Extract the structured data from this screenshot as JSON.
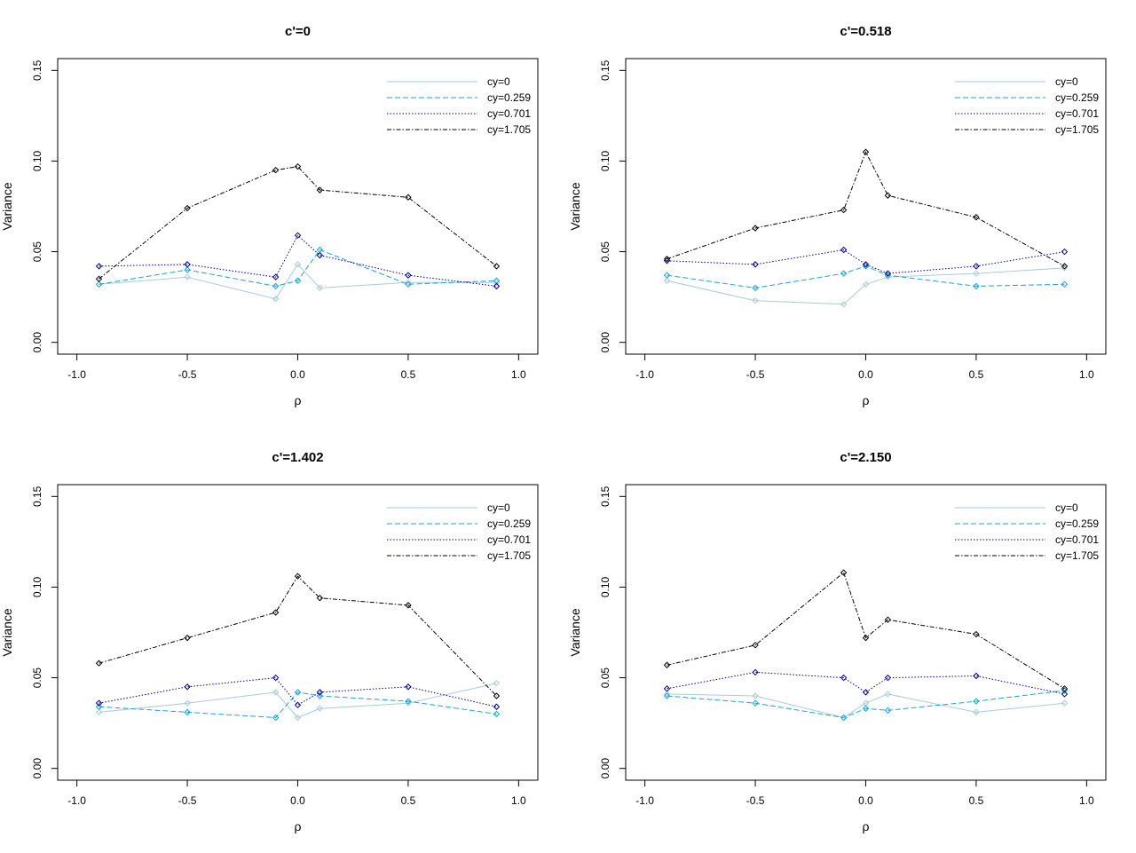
{
  "chart_data": [
    {
      "type": "line",
      "title": "c'=0",
      "xlabel": "ρ",
      "ylabel": "Variance",
      "xlim": [
        -1.0,
        1.0
      ],
      "ylim": [
        0.0,
        0.15
      ],
      "x_ticks": [
        "-1.0",
        "-0.5",
        "0.0",
        "0.5",
        "1.0"
      ],
      "y_ticks": [
        "0.00",
        "0.05",
        "0.10",
        "0.15"
      ],
      "legend_position": "top-right",
      "x": [
        -0.9,
        -0.5,
        -0.1,
        0.0,
        0.1,
        0.5,
        0.9
      ],
      "series": [
        {
          "name": "cy=0",
          "values": [
            0.032,
            0.036,
            0.024,
            0.043,
            0.03,
            0.033,
            0.033
          ]
        },
        {
          "name": "cy=0.259",
          "values": [
            0.032,
            0.04,
            0.031,
            0.034,
            0.051,
            0.032,
            0.034
          ]
        },
        {
          "name": "cy=0.701",
          "values": [
            0.042,
            0.043,
            0.036,
            0.059,
            0.048,
            0.037,
            0.031
          ]
        },
        {
          "name": "cy=1.705",
          "values": [
            0.035,
            0.074,
            0.095,
            0.097,
            0.084,
            0.08,
            0.042
          ]
        }
      ]
    },
    {
      "type": "line",
      "title": "c'=0.518",
      "xlabel": "ρ",
      "ylabel": "Variance",
      "xlim": [
        -1.0,
        1.0
      ],
      "ylim": [
        0.0,
        0.15
      ],
      "x_ticks": [
        "-1.0",
        "-0.5",
        "0.0",
        "0.5",
        "1.0"
      ],
      "y_ticks": [
        "0.00",
        "0.05",
        "0.10",
        "0.15"
      ],
      "legend_position": "top-right",
      "x": [
        -0.9,
        -0.5,
        -0.1,
        0.0,
        0.1,
        0.5,
        0.9
      ],
      "series": [
        {
          "name": "cy=0",
          "values": [
            0.034,
            0.023,
            0.021,
            0.032,
            0.036,
            0.038,
            0.041
          ]
        },
        {
          "name": "cy=0.259",
          "values": [
            0.037,
            0.03,
            0.038,
            0.042,
            0.037,
            0.031,
            0.032
          ]
        },
        {
          "name": "cy=0.701",
          "values": [
            0.045,
            0.043,
            0.051,
            0.043,
            0.038,
            0.042,
            0.05
          ]
        },
        {
          "name": "cy=1.705",
          "values": [
            0.046,
            0.063,
            0.073,
            0.105,
            0.081,
            0.069,
            0.042
          ]
        }
      ]
    },
    {
      "type": "line",
      "title": "c'=1.402",
      "xlabel": "ρ",
      "ylabel": "Variance",
      "xlim": [
        -1.0,
        1.0
      ],
      "ylim": [
        0.0,
        0.15
      ],
      "x_ticks": [
        "-1.0",
        "-0.5",
        "0.0",
        "0.5",
        "1.0"
      ],
      "y_ticks": [
        "0.00",
        "0.05",
        "0.10",
        "0.15"
      ],
      "legend_position": "top-right",
      "x": [
        -0.9,
        -0.5,
        -0.1,
        0.0,
        0.1,
        0.5,
        0.9
      ],
      "series": [
        {
          "name": "cy=0",
          "values": [
            0.031,
            0.036,
            0.042,
            0.028,
            0.033,
            0.036,
            0.047
          ]
        },
        {
          "name": "cy=0.259",
          "values": [
            0.034,
            0.031,
            0.028,
            0.042,
            0.04,
            0.037,
            0.03
          ]
        },
        {
          "name": "cy=0.701",
          "values": [
            0.036,
            0.045,
            0.05,
            0.035,
            0.042,
            0.045,
            0.034
          ]
        },
        {
          "name": "cy=1.705",
          "values": [
            0.058,
            0.072,
            0.086,
            0.106,
            0.094,
            0.09,
            0.04
          ]
        }
      ]
    },
    {
      "type": "line",
      "title": "c'=2.150",
      "xlabel": "ρ",
      "ylabel": "Variance",
      "xlim": [
        -1.0,
        1.0
      ],
      "ylim": [
        0.0,
        0.15
      ],
      "x_ticks": [
        "-1.0",
        "-0.5",
        "0.0",
        "0.5",
        "1.0"
      ],
      "y_ticks": [
        "0.00",
        "0.05",
        "0.10",
        "0.15"
      ],
      "legend_position": "top-right",
      "x": [
        -0.9,
        -0.5,
        -0.1,
        0.0,
        0.1,
        0.5,
        0.9
      ],
      "series": [
        {
          "name": "cy=0",
          "values": [
            0.041,
            0.04,
            0.028,
            0.036,
            0.041,
            0.031,
            0.036
          ]
        },
        {
          "name": "cy=0.259",
          "values": [
            0.04,
            0.036,
            0.028,
            0.033,
            0.032,
            0.037,
            0.043
          ]
        },
        {
          "name": "cy=0.701",
          "values": [
            0.044,
            0.053,
            0.05,
            0.042,
            0.05,
            0.051,
            0.041
          ]
        },
        {
          "name": "cy=1.705",
          "values": [
            0.057,
            0.068,
            0.108,
            0.072,
            0.082,
            0.074,
            0.044
          ]
        }
      ]
    }
  ],
  "series_styles": [
    {
      "color": "#a8ccd8",
      "dash": "none",
      "marker_color": "#a8ccd8"
    },
    {
      "color": "#1fa3cf",
      "dash": "6 3",
      "marker_color": "#1fa3cf"
    },
    {
      "color": "#00008b",
      "dash": "1.5 2",
      "marker_color": "#00008b"
    },
    {
      "color": "#000000",
      "dash": "5 2 1.5 2",
      "marker_color": "#000000"
    }
  ]
}
